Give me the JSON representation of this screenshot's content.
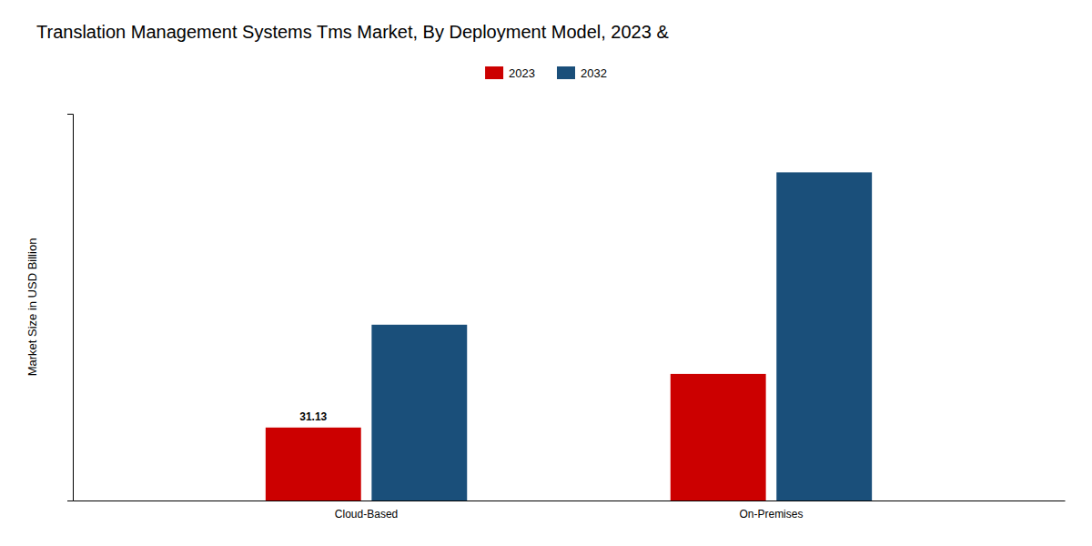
{
  "chart_data": {
    "type": "bar",
    "title": "Translation Management Systems Tms Market, By Deployment Model, 2023 &",
    "y_label": "Market Size in USD Billion",
    "categories": [
      "Cloud-Based",
      "On-Premises"
    ],
    "series": [
      {
        "name": "2023",
        "color": "#cc0000",
        "values": [
          31.13,
          54.0
        ]
      },
      {
        "name": "2032",
        "color": "#1a4f7a",
        "values": [
          75.0,
          140.0
        ]
      }
    ],
    "annotations": [
      {
        "text": "31.13",
        "category": "Cloud-Based",
        "series": "2023"
      }
    ],
    "ylim": [
      0,
      165
    ],
    "yticks": [],
    "tick_labels": "x",
    "grid": false,
    "legend": "top"
  }
}
